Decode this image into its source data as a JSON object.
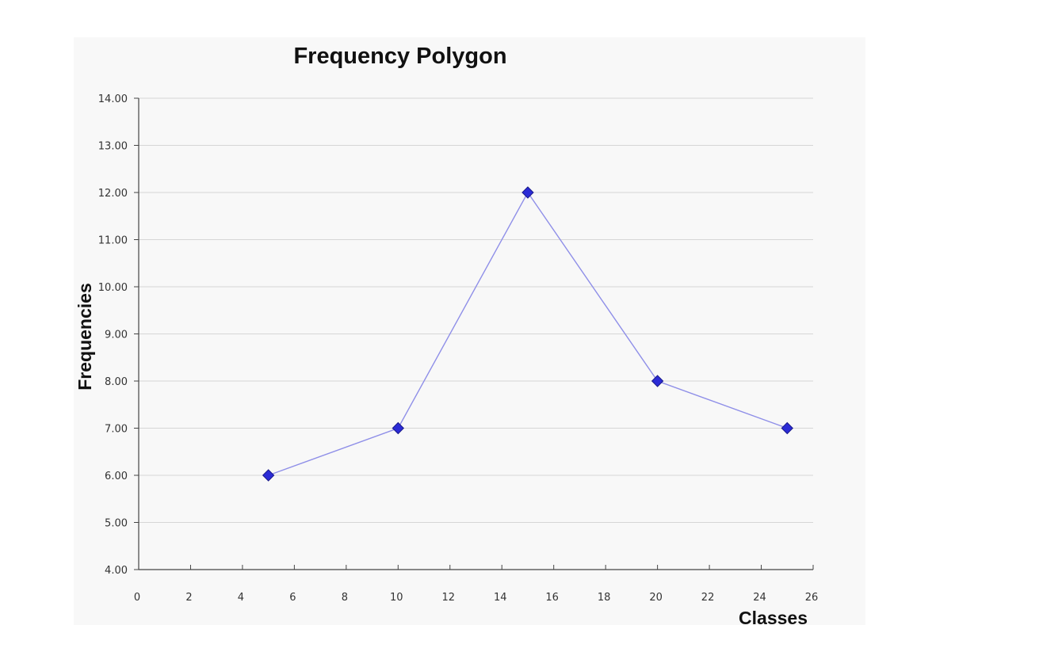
{
  "chart_data": {
    "type": "line",
    "title": "Frequency Polygon",
    "xlabel": "Classes",
    "ylabel": "Frequencies",
    "xlim": [
      0,
      26
    ],
    "ylim": [
      4,
      14
    ],
    "xticks": [
      0,
      2,
      4,
      6,
      8,
      10,
      12,
      14,
      16,
      18,
      20,
      22,
      24,
      26
    ],
    "yticks": [
      "4.00",
      "5.00",
      "6.00",
      "7.00",
      "8.00",
      "9.00",
      "10.00",
      "11.00",
      "12.00",
      "13.00",
      "14.00"
    ],
    "grid": true,
    "legend": "none",
    "series": [
      {
        "x": [
          5,
          10,
          15,
          20,
          25
        ],
        "values": [
          6,
          7,
          12,
          8,
          7
        ],
        "line_color": "#8f8fe8",
        "marker_color": "#2b2bd6",
        "marker": "diamond"
      }
    ]
  }
}
